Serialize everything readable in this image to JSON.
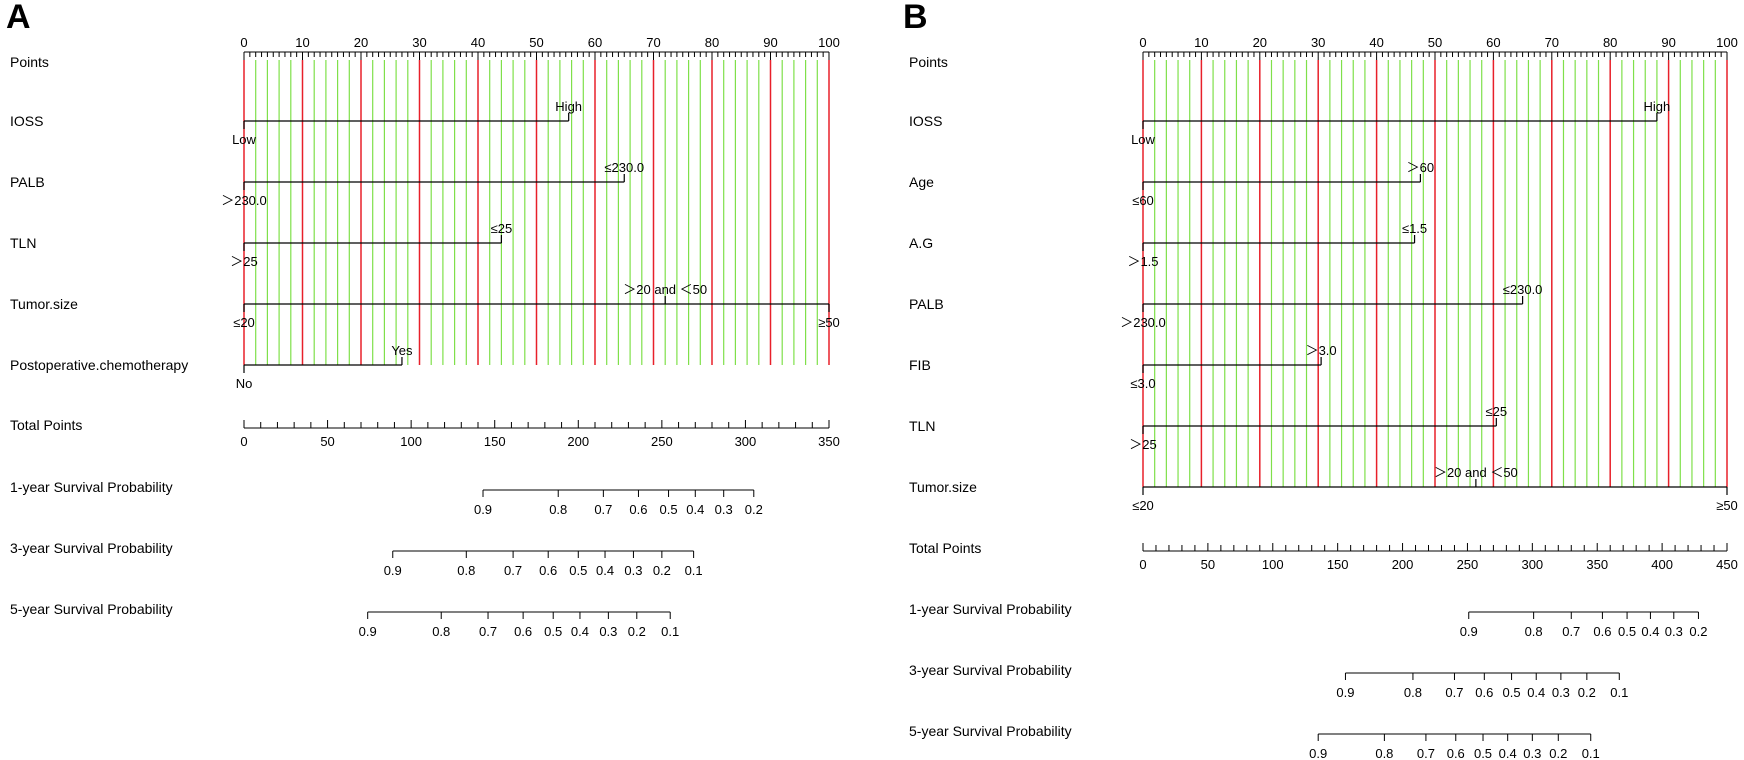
{
  "chart_data": [
    {
      "type": "nomogram",
      "panel_label": "A",
      "points_axis": {
        "label": "Points",
        "range": [
          0,
          100
        ],
        "tick_labels": [
          "0",
          "10",
          "20",
          "30",
          "40",
          "50",
          "60",
          "70",
          "80",
          "90",
          "100"
        ]
      },
      "grid": {
        "minor": "green",
        "major": "red"
      },
      "predictors": [
        {
          "name": "IOSS",
          "levels": [
            {
              "label": "Low",
              "points": 0
            },
            {
              "label": "High",
              "points": 55.5
            }
          ]
        },
        {
          "name": "PALB",
          "levels": [
            {
              "label": "＞230.0",
              "points": 0
            },
            {
              "label": "≤230.0",
              "points": 65
            }
          ]
        },
        {
          "name": "TLN",
          "levels": [
            {
              "label": "＞25",
              "points": 0
            },
            {
              "label": "≤25",
              "points": 44
            }
          ]
        },
        {
          "name": "Tumor.size",
          "levels": [
            {
              "label": "≤20",
              "points": 0
            },
            {
              "label": "＞20 and ＜50",
              "points": 72
            },
            {
              "label": "≥50",
              "points": 100
            }
          ]
        },
        {
          "name": "Postoperative.chemotherapy",
          "levels": [
            {
              "label": "No",
              "points": 0
            },
            {
              "label": "Yes",
              "points": 27
            }
          ]
        }
      ],
      "total_points": {
        "label": "Total Points",
        "range": [
          0,
          350
        ],
        "tick_labels": [
          "0",
          "50",
          "100",
          "150",
          "200",
          "250",
          "300",
          "350"
        ]
      },
      "survival_scales": [
        {
          "label": "1-year Survival Probability",
          "ticks": [
            {
              "label": "0.9",
              "total": 143
            },
            {
              "label": "0.8",
              "total": 188
            },
            {
              "label": "0.7",
              "total": 215
            },
            {
              "label": "0.6",
              "total": 236
            },
            {
              "label": "0.5",
              "total": 254
            },
            {
              "label": "0.4",
              "total": 270
            },
            {
              "label": "0.3",
              "total": 287
            },
            {
              "label": "0.2",
              "total": 305
            }
          ]
        },
        {
          "label": "3-year Survival Probability",
          "ticks": [
            {
              "label": "0.9",
              "total": 89
            },
            {
              "label": "0.8",
              "total": 133
            },
            {
              "label": "0.7",
              "total": 161
            },
            {
              "label": "0.6",
              "total": 182
            },
            {
              "label": "0.5",
              "total": 200
            },
            {
              "label": "0.4",
              "total": 216
            },
            {
              "label": "0.3",
              "total": 233
            },
            {
              "label": "0.2",
              "total": 250
            },
            {
              "label": "0.1",
              "total": 269
            }
          ]
        },
        {
          "label": "5-year Survival Probability",
          "ticks": [
            {
              "label": "0.9",
              "total": 74
            },
            {
              "label": "0.8",
              "total": 118
            },
            {
              "label": "0.7",
              "total": 146
            },
            {
              "label": "0.6",
              "total": 167
            },
            {
              "label": "0.5",
              "total": 185
            },
            {
              "label": "0.4",
              "total": 201
            },
            {
              "label": "0.3",
              "total": 218
            },
            {
              "label": "0.2",
              "total": 235
            },
            {
              "label": "0.1",
              "total": 255
            }
          ]
        }
      ]
    },
    {
      "type": "nomogram",
      "panel_label": "B",
      "points_axis": {
        "label": "Points",
        "range": [
          0,
          100
        ],
        "tick_labels": [
          "0",
          "10",
          "20",
          "30",
          "40",
          "50",
          "60",
          "70",
          "80",
          "90",
          "100"
        ]
      },
      "grid": {
        "minor": "green",
        "major": "red"
      },
      "predictors": [
        {
          "name": "IOSS",
          "levels": [
            {
              "label": "Low",
              "points": 0
            },
            {
              "label": "High",
              "points": 88
            }
          ]
        },
        {
          "name": "Age",
          "levels": [
            {
              "label": "≤60",
              "points": 0
            },
            {
              "label": "＞60",
              "points": 47.5
            }
          ]
        },
        {
          "name": "A.G",
          "levels": [
            {
              "label": "＞1.5",
              "points": 0
            },
            {
              "label": "≤1.5",
              "points": 46.5
            }
          ]
        },
        {
          "name": "PALB",
          "levels": [
            {
              "label": "＞230.0",
              "points": 0
            },
            {
              "label": "≤230.0",
              "points": 65
            }
          ]
        },
        {
          "name": "FIB",
          "levels": [
            {
              "label": "≤3.0",
              "points": 0
            },
            {
              "label": "＞3.0",
              "points": 30.5
            }
          ]
        },
        {
          "name": "TLN",
          "levels": [
            {
              "label": "＞25",
              "points": 0
            },
            {
              "label": "≤25",
              "points": 60.5
            }
          ]
        },
        {
          "name": "Tumor.size",
          "levels": [
            {
              "label": "≤20",
              "points": 0
            },
            {
              "label": "＞20 and ＜50",
              "points": 57
            },
            {
              "label": "≥50",
              "points": 100
            }
          ]
        }
      ],
      "total_points": {
        "label": "Total Points",
        "range": [
          0,
          450
        ],
        "tick_labels": [
          "0",
          "50",
          "100",
          "150",
          "200",
          "250",
          "300",
          "350",
          "400",
          "450"
        ]
      },
      "survival_scales": [
        {
          "label": "1-year Survival Probability",
          "ticks": [
            {
              "label": "0.9",
              "total": 251
            },
            {
              "label": "0.8",
              "total": 301
            },
            {
              "label": "0.7",
              "total": 330
            },
            {
              "label": "0.6",
              "total": 354
            },
            {
              "label": "0.5",
              "total": 373
            },
            {
              "label": "0.4",
              "total": 391
            },
            {
              "label": "0.3",
              "total": 409
            },
            {
              "label": "0.2",
              "total": 428
            }
          ]
        },
        {
          "label": "3-year Survival Probability",
          "ticks": [
            {
              "label": "0.9",
              "total": 156
            },
            {
              "label": "0.8",
              "total": 208
            },
            {
              "label": "0.7",
              "total": 240
            },
            {
              "label": "0.6",
              "total": 263
            },
            {
              "label": "0.5",
              "total": 284
            },
            {
              "label": "0.4",
              "total": 303
            },
            {
              "label": "0.3",
              "total": 322
            },
            {
              "label": "0.2",
              "total": 342
            },
            {
              "label": "0.1",
              "total": 367
            }
          ]
        },
        {
          "label": "5-year Survival Probability",
          "ticks": [
            {
              "label": "0.9",
              "total": 135
            },
            {
              "label": "0.8",
              "total": 186
            },
            {
              "label": "0.7",
              "total": 218
            },
            {
              "label": "0.6",
              "total": 241
            },
            {
              "label": "0.5",
              "total": 262
            },
            {
              "label": "0.4",
              "total": 281
            },
            {
              "label": "0.3",
              "total": 300
            },
            {
              "label": "0.2",
              "total": 320
            },
            {
              "label": "0.1",
              "total": 345
            }
          ]
        }
      ]
    }
  ],
  "colors": {
    "minor_grid": "#7fe04a",
    "major_grid": "#e8202a",
    "axis": "#000000",
    "background": "#ffffff"
  }
}
